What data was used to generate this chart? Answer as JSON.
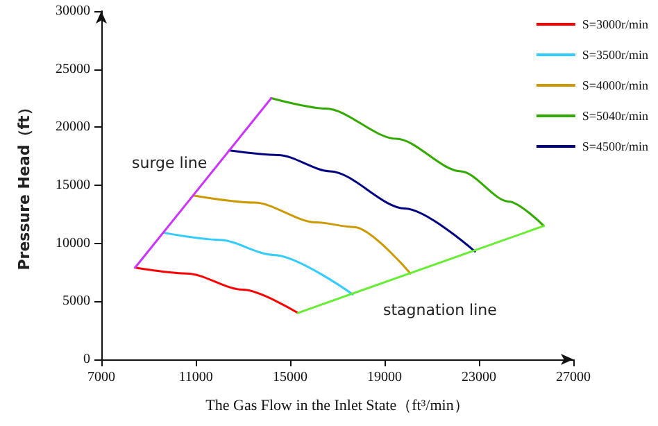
{
  "chart_data": {
    "type": "line",
    "xlabel": "The Gas Flow in the Inlet State（ft³/min）",
    "ylabel": "Pressure Head（ft）",
    "xlim": [
      7000,
      27000
    ],
    "xticks": [
      7000,
      11000,
      15000,
      19000,
      23000,
      27000
    ],
    "ylim": [
      0,
      30000
    ],
    "yticks": [
      0,
      5000,
      10000,
      15000,
      20000,
      25000,
      30000
    ],
    "grid": false,
    "legend": "top right",
    "marker": "none",
    "line_style": "solid",
    "series": [
      {
        "name": "S=3000r/min",
        "color": "#ff0000",
        "x": [
          8430,
          10630,
          13000,
          15330
        ],
        "values": [
          7900,
          7400,
          6000,
          4000
        ]
      },
      {
        "name": "S=3500r/min",
        "color": "#33ccff",
        "x": [
          9680,
          12000,
          14300,
          17650
        ],
        "values": [
          10900,
          10300,
          9000,
          5600
        ]
      },
      {
        "name": "S=4000r/min",
        "color": "#cc9900",
        "x": [
          10930,
          13500,
          16100,
          17700,
          20100
        ],
        "values": [
          14100,
          13500,
          11800,
          11400,
          7400
        ]
      },
      {
        "name": "S=5040r/min",
        "color": "#33aa00",
        "x": [
          14200,
          16520,
          19500,
          22240,
          24260,
          25750
        ],
        "values": [
          22500,
          21600,
          19000,
          16200,
          13600,
          11500
        ]
      },
      {
        "name": "S=4500r/min",
        "color": "#000080",
        "x": [
          12420,
          14500,
          16700,
          19860,
          22830
        ],
        "values": [
          18000,
          17600,
          16200,
          13000,
          9300
        ]
      },
      {
        "color": "#cc33ff",
        "x": [
          8430,
          14200
        ],
        "values": [
          7900,
          22500
        ]
      },
      {
        "color": "#66ee33",
        "x": [
          15330,
          25750
        ],
        "values": [
          4000,
          11500
        ]
      }
    ],
    "annotations": [
      "surge line",
      "stagnation line"
    ]
  }
}
